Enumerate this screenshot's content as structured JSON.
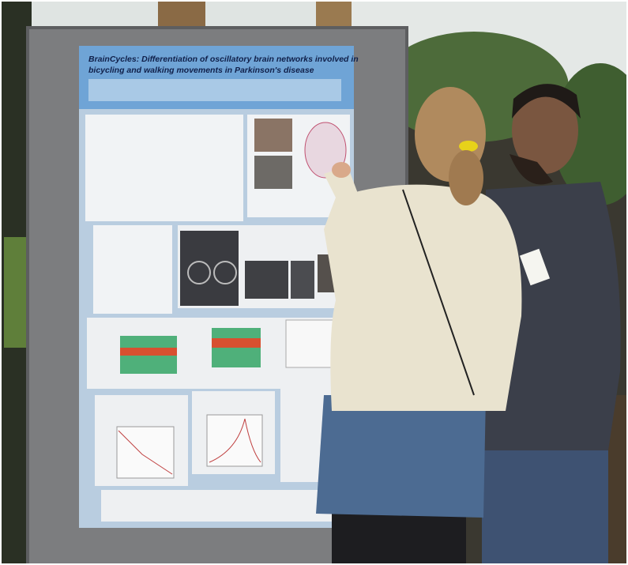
{
  "poster": {
    "title_lines": [
      "BrainCycles: Differentiation of oscillatory brain networks involved in",
      "bicycling and walking movements in Parkinson's disease"
    ]
  }
}
